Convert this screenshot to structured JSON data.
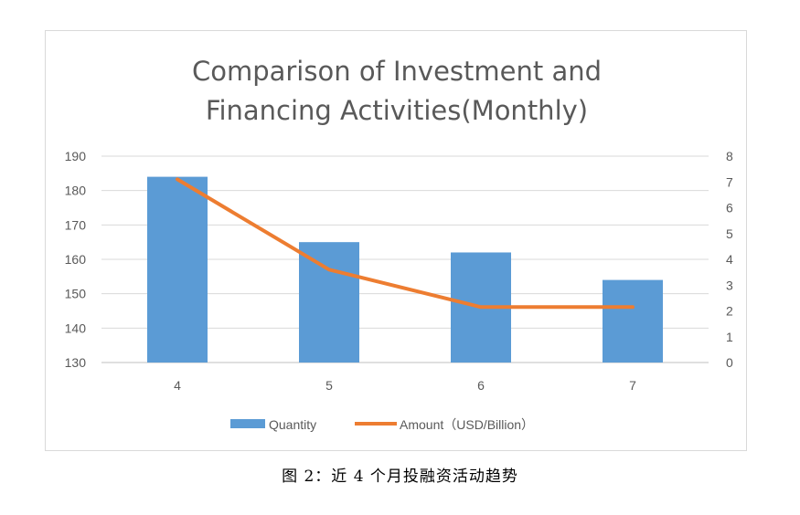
{
  "chart_data": {
    "type": "bar",
    "title_lines": [
      "Comparison of Investment and",
      "Financing Activities(Monthly)"
    ],
    "categories": [
      "4",
      "5",
      "6",
      "7"
    ],
    "series": [
      {
        "name": "Quantity",
        "type": "bar",
        "axis": "left",
        "values": [
          184,
          165,
          162,
          154
        ],
        "color": "#5b9bd5"
      },
      {
        "name": "Amount（USD/Billion）",
        "type": "line",
        "axis": "right",
        "values": [
          7.1,
          3.6,
          2.15,
          2.15
        ],
        "color": "#ed7d31"
      }
    ],
    "left_axis": {
      "min": 130,
      "max": 190,
      "step": 10,
      "ticks": [
        "130",
        "140",
        "150",
        "160",
        "170",
        "180",
        "190"
      ]
    },
    "right_axis": {
      "min": 0,
      "max": 8,
      "step": 1,
      "ticks": [
        "0",
        "1",
        "2",
        "3",
        "4",
        "5",
        "6",
        "7",
        "8"
      ]
    },
    "grid": true,
    "legend_position": "bottom"
  },
  "caption": "图 2：近 4 个月投融资活动趋势"
}
